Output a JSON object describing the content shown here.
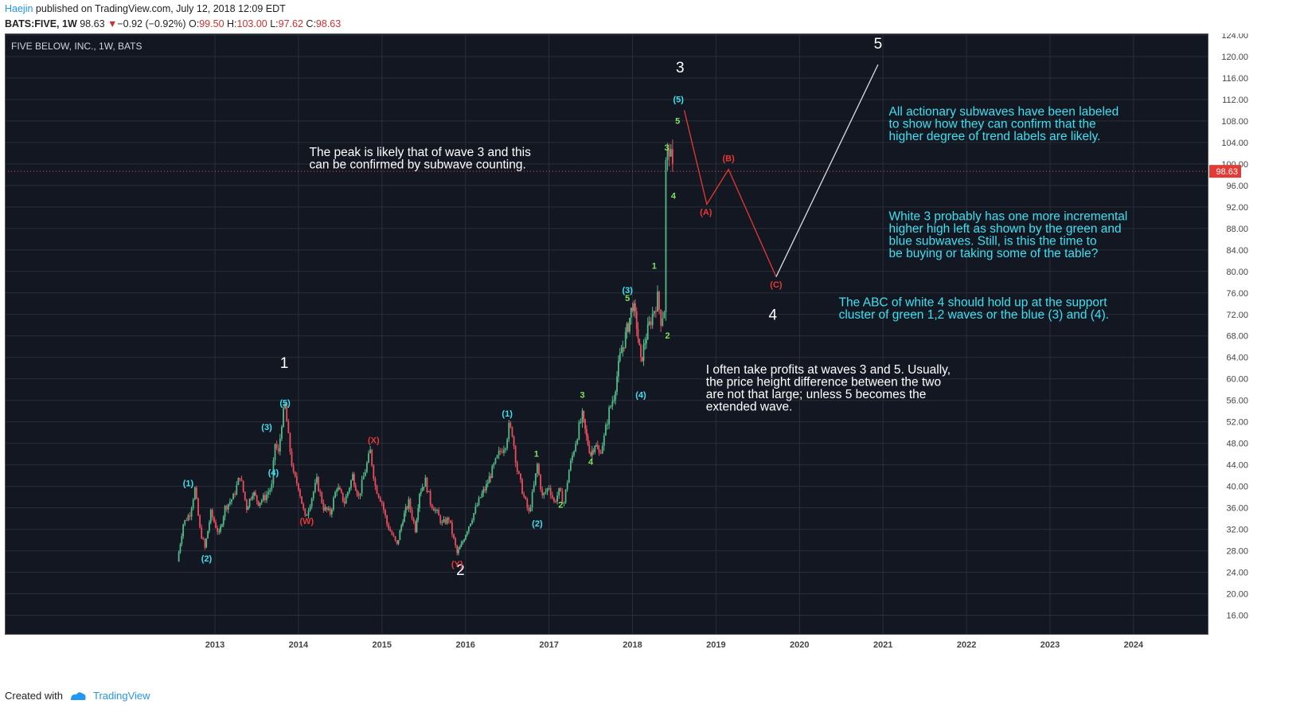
{
  "header": {
    "author": "Haejin",
    "published": " published on TradingView.com, July 12, 2018 12:09 EDT",
    "symbol": "BATS:FIVE, 1W",
    "last": "98.63",
    "arrow": "▼",
    "change": "−0.92 (−0.92%)",
    "o_label": "O:",
    "o_val": "99.50",
    "h_label": "H:",
    "h_val": "103.00",
    "l_label": "L:",
    "l_val": "97.62",
    "c_label": "C:",
    "c_val": "98.63"
  },
  "colors": {
    "background": "#131722",
    "grid": "#2a2e39",
    "up": "#53b987",
    "down": "#eb4d5c",
    "cyan": "#3de0f0",
    "green": "#7fe35a",
    "red": "#e53935",
    "white": "#ffffff",
    "axis_text": "#b2b5be"
  },
  "footer": {
    "created": "Created with",
    "brand": "TradingView"
  },
  "chart_data": {
    "type": "candlestick",
    "title": "FIVE BELOW, INC., 1W, BATS",
    "ylim": [
      14,
      124
    ],
    "y_ticks": [
      "124.00",
      "120.00",
      "116.00",
      "112.00",
      "108.00",
      "104.00",
      "100.00",
      "96.00",
      "92.00",
      "88.00",
      "84.00",
      "80.00",
      "76.00",
      "72.00",
      "68.00",
      "64.00",
      "60.00",
      "56.00",
      "52.00",
      "48.00",
      "44.00",
      "40.00",
      "36.00",
      "32.00",
      "28.00",
      "24.00",
      "20.00",
      "16.00"
    ],
    "x_ticks": [
      "2013",
      "2014",
      "2015",
      "2016",
      "2017",
      "2018",
      "2019",
      "2020",
      "2021",
      "2022",
      "2023",
      "2024"
    ],
    "last_price_label": "98.63",
    "price_path": [
      [
        2012.55,
        26
      ],
      [
        2012.62,
        33
      ],
      [
        2012.7,
        35
      ],
      [
        2012.76,
        39.5
      ],
      [
        2012.82,
        32
      ],
      [
        2012.88,
        28.5
      ],
      [
        2012.95,
        35
      ],
      [
        2013.05,
        31
      ],
      [
        2013.12,
        36
      ],
      [
        2013.22,
        38
      ],
      [
        2013.3,
        42
      ],
      [
        2013.38,
        36
      ],
      [
        2013.45,
        39
      ],
      [
        2013.52,
        37
      ],
      [
        2013.6,
        38
      ],
      [
        2013.68,
        40
      ],
      [
        2013.72,
        48
      ],
      [
        2013.76,
        46
      ],
      [
        2013.8,
        52
      ],
      [
        2013.84,
        55
      ],
      [
        2013.88,
        49
      ],
      [
        2013.94,
        42
      ],
      [
        2014.0,
        40
      ],
      [
        2014.08,
        34
      ],
      [
        2014.14,
        37
      ],
      [
        2014.22,
        41
      ],
      [
        2014.3,
        36
      ],
      [
        2014.38,
        35
      ],
      [
        2014.46,
        40
      ],
      [
        2014.55,
        37
      ],
      [
        2014.65,
        42
      ],
      [
        2014.72,
        38
      ],
      [
        2014.8,
        43
      ],
      [
        2014.86,
        46.5
      ],
      [
        2014.92,
        40
      ],
      [
        2015.0,
        37
      ],
      [
        2015.06,
        33
      ],
      [
        2015.12,
        31
      ],
      [
        2015.18,
        29
      ],
      [
        2015.25,
        34
      ],
      [
        2015.32,
        37
      ],
      [
        2015.4,
        32
      ],
      [
        2015.45,
        39
      ],
      [
        2015.52,
        41
      ],
      [
        2015.58,
        37
      ],
      [
        2015.66,
        35
      ],
      [
        2015.72,
        33
      ],
      [
        2015.8,
        34
      ],
      [
        2015.86,
        30
      ],
      [
        2015.9,
        27.5
      ],
      [
        2015.95,
        29
      ],
      [
        2016.02,
        32
      ],
      [
        2016.1,
        35
      ],
      [
        2016.18,
        38
      ],
      [
        2016.25,
        40
      ],
      [
        2016.32,
        43
      ],
      [
        2016.4,
        46
      ],
      [
        2016.48,
        48
      ],
      [
        2016.52,
        51
      ],
      [
        2016.56,
        50
      ],
      [
        2016.62,
        43
      ],
      [
        2016.7,
        38
      ],
      [
        2016.76,
        35
      ],
      [
        2016.82,
        40
      ],
      [
        2016.86,
        44
      ],
      [
        2016.92,
        38
      ],
      [
        2017.0,
        40
      ],
      [
        2017.06,
        37
      ],
      [
        2017.12,
        39
      ],
      [
        2017.18,
        37
      ],
      [
        2017.24,
        43
      ],
      [
        2017.3,
        47
      ],
      [
        2017.36,
        51
      ],
      [
        2017.4,
        53
      ],
      [
        2017.45,
        49
      ],
      [
        2017.5,
        46
      ],
      [
        2017.55,
        48
      ],
      [
        2017.6,
        46
      ],
      [
        2017.66,
        49
      ],
      [
        2017.72,
        54
      ],
      [
        2017.78,
        57
      ],
      [
        2017.85,
        64
      ],
      [
        2017.9,
        67
      ],
      [
        2017.95,
        70
      ],
      [
        2018.0,
        74
      ],
      [
        2018.05,
        70
      ],
      [
        2018.1,
        63
      ],
      [
        2018.15,
        67
      ],
      [
        2018.2,
        70
      ],
      [
        2018.26,
        73
      ],
      [
        2018.3,
        75
      ],
      [
        2018.34,
        71
      ],
      [
        2018.38,
        73
      ],
      [
        2018.4,
        100
      ],
      [
        2018.44,
        103
      ],
      [
        2018.48,
        98.63
      ]
    ]
  },
  "annotations": {
    "wave_white": [
      {
        "t": "1",
        "d": 2013.83,
        "p": 62
      },
      {
        "t": "2",
        "d": 2015.94,
        "p": 23.5
      },
      {
        "t": "3",
        "d": 2018.57,
        "p": 117
      },
      {
        "t": "4",
        "d": 2019.68,
        "p": 71
      },
      {
        "t": "5",
        "d": 2020.94,
        "p": 121.5
      }
    ],
    "wave_cyan": [
      {
        "t": "(1)",
        "d": 2012.68,
        "p": 40
      },
      {
        "t": "(2)",
        "d": 2012.9,
        "p": 26
      },
      {
        "t": "(3)",
        "d": 2013.62,
        "p": 50.5
      },
      {
        "t": "(4)",
        "d": 2013.7,
        "p": 42
      },
      {
        "t": "(5)",
        "d": 2013.84,
        "p": 55
      },
      {
        "t": "(1)",
        "d": 2016.5,
        "p": 53
      },
      {
        "t": "(2)",
        "d": 2016.86,
        "p": 32.5
      },
      {
        "t": "(3)",
        "d": 2017.94,
        "p": 76
      },
      {
        "t": "(4)",
        "d": 2018.1,
        "p": 56.5
      },
      {
        "t": "(5)",
        "d": 2018.55,
        "p": 111.5
      }
    ],
    "wave_green": [
      {
        "t": "1",
        "d": 2016.85,
        "p": 45.5
      },
      {
        "t": "2",
        "d": 2017.14,
        "p": 36
      },
      {
        "t": "3",
        "d": 2017.4,
        "p": 56.5
      },
      {
        "t": "4",
        "d": 2017.5,
        "p": 44
      },
      {
        "t": "5",
        "d": 2017.94,
        "p": 74.5
      },
      {
        "t": "1",
        "d": 2018.26,
        "p": 80.5
      },
      {
        "t": "2",
        "d": 2018.42,
        "p": 67.5
      },
      {
        "t": "3",
        "d": 2018.41,
        "p": 102.5
      },
      {
        "t": "4",
        "d": 2018.49,
        "p": 93.5
      },
      {
        "t": "5",
        "d": 2018.54,
        "p": 107.5
      }
    ],
    "wave_red": [
      {
        "t": "(W)",
        "d": 2014.1,
        "p": 33
      },
      {
        "t": "(X)",
        "d": 2014.9,
        "p": 48
      },
      {
        "t": "(Y)",
        "d": 2015.9,
        "p": 25
      },
      {
        "t": "(A)",
        "d": 2018.88,
        "p": 90.5
      },
      {
        "t": "(B)",
        "d": 2019.15,
        "p": 100.5
      },
      {
        "t": "(C)",
        "d": 2019.72,
        "p": 77
      }
    ],
    "projection_red": [
      [
        2018.62,
        110
      ],
      [
        2018.89,
        92.5
      ],
      [
        2019.15,
        99
      ],
      [
        2019.72,
        79
      ]
    ],
    "projection_white": [
      [
        2019.72,
        79
      ],
      [
        2020.94,
        118.5
      ]
    ],
    "notes": [
      {
        "text": [
          "The peak is likely that of wave 3 and this",
          "can be confirmed by subwave counting."
        ],
        "color": "white",
        "d": 2014.13,
        "p": 101.5
      },
      {
        "text": [
          "All actionary subwaves have been labeled",
          "to show how they can confirm that the",
          "higher degree of trend labels are likely."
        ],
        "color": "cyan",
        "d": 2021.07,
        "p": 109
      },
      {
        "text": [
          "White 3 probably has one more incremental",
          "higher high left as shown by the green and",
          "blue subwaves. Still, is this the time to",
          "be buying or taking some of the table?"
        ],
        "color": "cyan",
        "d": 2021.07,
        "p": 89.5
      },
      {
        "text": [
          "The ABC of white 4 should hold up at the support",
          "cluster of green 1,2 waves or the blue (3) and (4)."
        ],
        "color": "cyan",
        "d": 2020.47,
        "p": 73.5
      },
      {
        "text": [
          "I often take profits at waves 3 and 5. Usually,",
          "the price height difference between the two",
          "are not that large; unless 5 becomes the",
          "extended wave."
        ],
        "color": "white",
        "d": 2018.88,
        "p": 61
      }
    ]
  }
}
